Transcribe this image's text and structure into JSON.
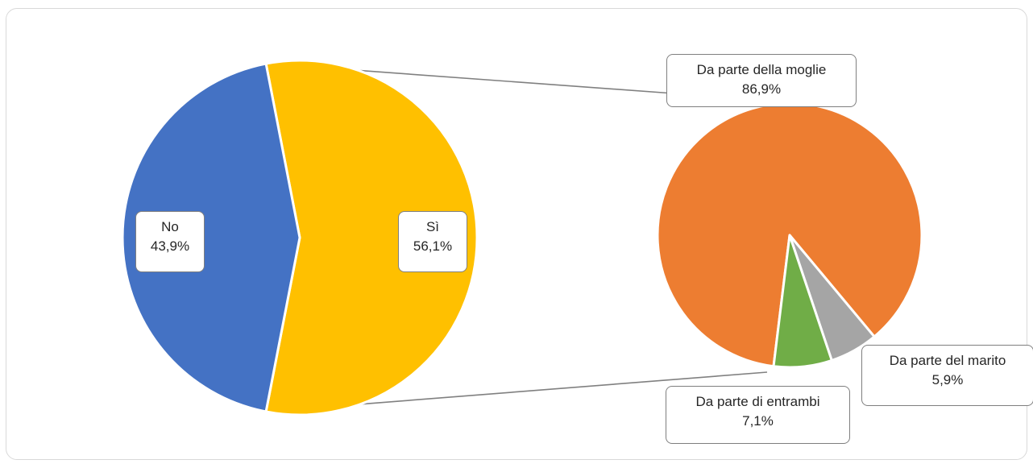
{
  "chart_data": {
    "type": "pie",
    "variant": "pie-of-pie",
    "title": "",
    "primary": {
      "slices": [
        {
          "label": "No",
          "value_label": "43,9%",
          "value": 43.9,
          "color": "#4472c4"
        },
        {
          "label": "Sì",
          "value_label": "56,1%",
          "value": 56.1,
          "color": "#ffc000"
        }
      ]
    },
    "secondary": {
      "expands": "Sì",
      "slices": [
        {
          "label": "Da parte della moglie",
          "value_label": "86,9%",
          "value": 86.9,
          "color": "#ed7d31"
        },
        {
          "label": "Da parte del marito",
          "value_label": "5,9%",
          "value": 5.9,
          "color": "#a5a5a5"
        },
        {
          "label": "Da parte di entrambi",
          "value_label": "7,1%",
          "value": 7.1,
          "color": "#70ad47"
        }
      ]
    },
    "legend": "none",
    "connector_color": "#808080"
  }
}
